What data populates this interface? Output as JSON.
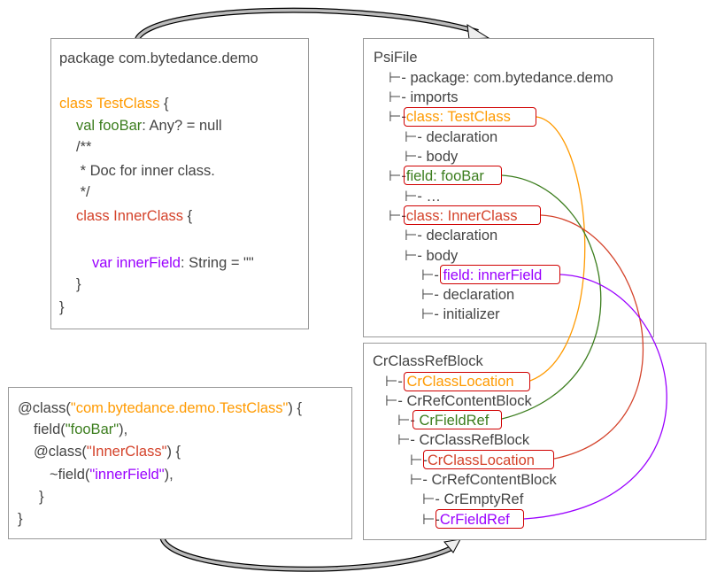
{
  "branch_glyph": "⊢-",
  "colors": {
    "test_class": "#ff9a00",
    "foo_bar": "#3b7d1d",
    "inner_class": "#d4432b",
    "inner_field": "#9a00ff",
    "highlight_border": "#d00000"
  },
  "kotlin_source": {
    "package_line": "package com.bytedance.demo",
    "class_kw": "class TestClass",
    "brace_open": " {",
    "val_kw": "val fooBar",
    "val_rest": ": Any? = null",
    "doc_open": "/**",
    "doc_text": " * Doc for inner class.",
    "doc_close": " */",
    "inner_kw": "class InnerClass",
    "inner_brace": " {",
    "var_kw": "var innerField",
    "var_rest": ": String = \"\"",
    "close_inner": "}",
    "close_outer": "}"
  },
  "psi_tree": {
    "root": "PsiFile",
    "nodes": [
      "package: com.bytedance.demo",
      "imports",
      "class: TestClass",
      "declaration",
      "body",
      "field: fooBar",
      "…",
      "class: InnerClass",
      "declaration",
      "body",
      "field: innerField",
      "declaration",
      "initializer"
    ]
  },
  "dsl_source": {
    "l1_a": "@class(",
    "l1_b": "\"com.bytedance.demo.TestClass\"",
    "l1_c": ") {",
    "l2_a": "field(",
    "l2_b": "\"fooBar\"",
    "l2_c": "),",
    "l3_a": "@class(",
    "l3_b": "\"InnerClass\"",
    "l3_c": ") {",
    "l4_a": "~field(",
    "l4_b": "\"innerField\"",
    "l4_c": "),",
    "l5": "}",
    "l6": "}"
  },
  "cr_tree": {
    "root": "CrClassRefBlock",
    "nodes": [
      "CrClassLocation",
      "CrRefContentBlock",
      "CrFieldRef",
      "CrClassRefBlock",
      "CrClassLocation",
      "CrRefContentBlock",
      "CrEmptyRef",
      "CrFieldRef"
    ]
  }
}
